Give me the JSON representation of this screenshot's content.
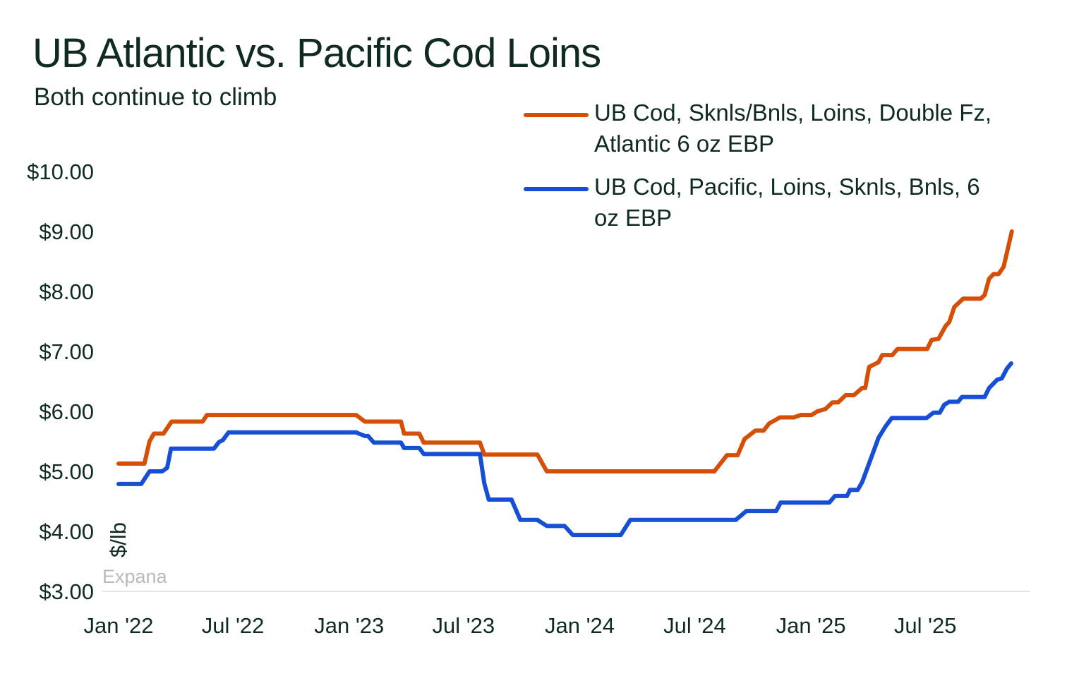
{
  "chart_data": {
    "type": "line",
    "title": "UB Atlantic vs. Pacific Cod Loins",
    "subtitle": "Both continue to climb",
    "xlabel": "",
    "ylabel": "$/lb",
    "watermark": "Expana",
    "ylim": [
      3,
      10
    ],
    "yticks": [
      {
        "value": 10,
        "label": "$10.00"
      },
      {
        "value": 9,
        "label": "$9.00"
      },
      {
        "value": 8,
        "label": "$8.00"
      },
      {
        "value": 7,
        "label": "$7.00"
      },
      {
        "value": 6,
        "label": "$6.00"
      },
      {
        "value": 5,
        "label": "$5.00"
      },
      {
        "value": 4,
        "label": "$4.00"
      },
      {
        "value": 3,
        "label": "$3.00"
      }
    ],
    "xticks": [
      {
        "date": "2022-01-01",
        "label": "Jan '22"
      },
      {
        "date": "2022-07-01",
        "label": "Jul '22"
      },
      {
        "date": "2023-01-01",
        "label": "Jan '23"
      },
      {
        "date": "2023-07-01",
        "label": "Jul '23"
      },
      {
        "date": "2024-01-01",
        "label": "Jan '24"
      },
      {
        "date": "2024-07-01",
        "label": "Jul '24"
      },
      {
        "date": "2025-01-01",
        "label": "Jan '25"
      },
      {
        "date": "2025-07-01",
        "label": "Jul '25"
      }
    ],
    "grid": false,
    "legend_position": "top-right",
    "series": [
      {
        "name": "UB Cod, Sknls/Bnls, Loins, Double Fz, Atlantic 6 oz EBP",
        "color": "#d54f07",
        "points": [
          [
            "2022-01-01",
            5.13
          ],
          [
            "2022-02-11",
            5.13
          ],
          [
            "2022-02-19",
            5.5
          ],
          [
            "2022-02-26",
            5.63
          ],
          [
            "2022-03-13",
            5.63
          ],
          [
            "2022-03-26",
            5.83
          ],
          [
            "2022-05-14",
            5.83
          ],
          [
            "2022-05-21",
            5.94
          ],
          [
            "2023-01-12",
            5.94
          ],
          [
            "2023-01-26",
            5.83
          ],
          [
            "2023-03-24",
            5.83
          ],
          [
            "2023-03-29",
            5.63
          ],
          [
            "2023-04-22",
            5.63
          ],
          [
            "2023-04-29",
            5.48
          ],
          [
            "2023-07-27",
            5.48
          ],
          [
            "2023-08-03",
            5.28
          ],
          [
            "2023-10-26",
            5.28
          ],
          [
            "2023-11-10",
            5.0
          ],
          [
            "2024-08-01",
            5.0
          ],
          [
            "2024-08-21",
            5.27
          ],
          [
            "2024-09-07",
            5.27
          ],
          [
            "2024-09-18",
            5.54
          ],
          [
            "2024-10-05",
            5.68
          ],
          [
            "2024-10-18",
            5.68
          ],
          [
            "2024-10-27",
            5.8
          ],
          [
            "2024-11-13",
            5.9
          ],
          [
            "2024-12-05",
            5.9
          ],
          [
            "2024-12-16",
            5.94
          ],
          [
            "2025-01-02",
            5.94
          ],
          [
            "2025-01-11",
            6.0
          ],
          [
            "2025-01-24",
            6.04
          ],
          [
            "2025-02-04",
            6.15
          ],
          [
            "2025-02-13",
            6.15
          ],
          [
            "2025-02-25",
            6.27
          ],
          [
            "2025-03-10",
            6.27
          ],
          [
            "2025-03-23",
            6.39
          ],
          [
            "2025-03-28",
            6.39
          ],
          [
            "2025-04-03",
            6.74
          ],
          [
            "2025-04-18",
            6.82
          ],
          [
            "2025-04-24",
            6.94
          ],
          [
            "2025-05-10",
            6.94
          ],
          [
            "2025-05-18",
            7.04
          ],
          [
            "2025-07-04",
            7.04
          ],
          [
            "2025-07-11",
            7.19
          ],
          [
            "2025-07-22",
            7.21
          ],
          [
            "2025-08-02",
            7.42
          ],
          [
            "2025-08-08",
            7.49
          ],
          [
            "2025-08-16",
            7.74
          ],
          [
            "2025-08-30",
            7.88
          ],
          [
            "2025-09-27",
            7.88
          ],
          [
            "2025-10-03",
            7.94
          ],
          [
            "2025-10-10",
            8.21
          ],
          [
            "2025-10-17",
            8.29
          ],
          [
            "2025-10-25",
            8.29
          ],
          [
            "2025-11-02",
            8.41
          ],
          [
            "2025-11-15",
            9.0
          ]
        ]
      },
      {
        "name": "UB Cod, Pacific, Loins, Sknls, Bnls, 6 oz EBP",
        "color": "#164fd6",
        "points": [
          [
            "2022-01-01",
            4.79
          ],
          [
            "2022-02-06",
            4.79
          ],
          [
            "2022-02-19",
            5.0
          ],
          [
            "2022-03-11",
            5.0
          ],
          [
            "2022-03-19",
            5.06
          ],
          [
            "2022-03-25",
            5.38
          ],
          [
            "2022-06-01",
            5.38
          ],
          [
            "2022-06-09",
            5.49
          ],
          [
            "2022-06-15",
            5.52
          ],
          [
            "2022-06-24",
            5.65
          ],
          [
            "2023-01-12",
            5.65
          ],
          [
            "2023-01-26",
            5.59
          ],
          [
            "2023-01-31",
            5.59
          ],
          [
            "2023-02-09",
            5.48
          ],
          [
            "2023-03-24",
            5.48
          ],
          [
            "2023-03-29",
            5.39
          ],
          [
            "2023-04-22",
            5.39
          ],
          [
            "2023-04-29",
            5.29
          ],
          [
            "2023-07-27",
            5.29
          ],
          [
            "2023-08-03",
            4.8
          ],
          [
            "2023-08-10",
            4.53
          ],
          [
            "2023-09-15",
            4.53
          ],
          [
            "2023-09-29",
            4.19
          ],
          [
            "2023-10-26",
            4.19
          ],
          [
            "2023-11-10",
            4.09
          ],
          [
            "2023-12-08",
            4.09
          ],
          [
            "2023-12-21",
            3.94
          ],
          [
            "2024-03-06",
            3.94
          ],
          [
            "2024-03-21",
            4.19
          ],
          [
            "2024-09-04",
            4.19
          ],
          [
            "2024-09-21",
            4.34
          ],
          [
            "2024-11-07",
            4.34
          ],
          [
            "2024-11-14",
            4.48
          ],
          [
            "2025-01-30",
            4.48
          ],
          [
            "2025-02-08",
            4.59
          ],
          [
            "2025-02-27",
            4.59
          ],
          [
            "2025-03-04",
            4.69
          ],
          [
            "2025-03-16",
            4.69
          ],
          [
            "2025-03-23",
            4.82
          ],
          [
            "2025-04-12",
            5.39
          ],
          [
            "2025-04-18",
            5.56
          ],
          [
            "2025-04-29",
            5.75
          ],
          [
            "2025-05-09",
            5.89
          ],
          [
            "2025-07-03",
            5.89
          ],
          [
            "2025-07-14",
            5.98
          ],
          [
            "2025-07-24",
            5.98
          ],
          [
            "2025-07-31",
            6.11
          ],
          [
            "2025-08-08",
            6.16
          ],
          [
            "2025-08-22",
            6.16
          ],
          [
            "2025-08-28",
            6.24
          ],
          [
            "2025-10-03",
            6.24
          ],
          [
            "2025-10-10",
            6.39
          ],
          [
            "2025-10-23",
            6.53
          ],
          [
            "2025-10-30",
            6.55
          ],
          [
            "2025-11-07",
            6.71
          ],
          [
            "2025-11-14",
            6.8
          ]
        ]
      }
    ]
  }
}
